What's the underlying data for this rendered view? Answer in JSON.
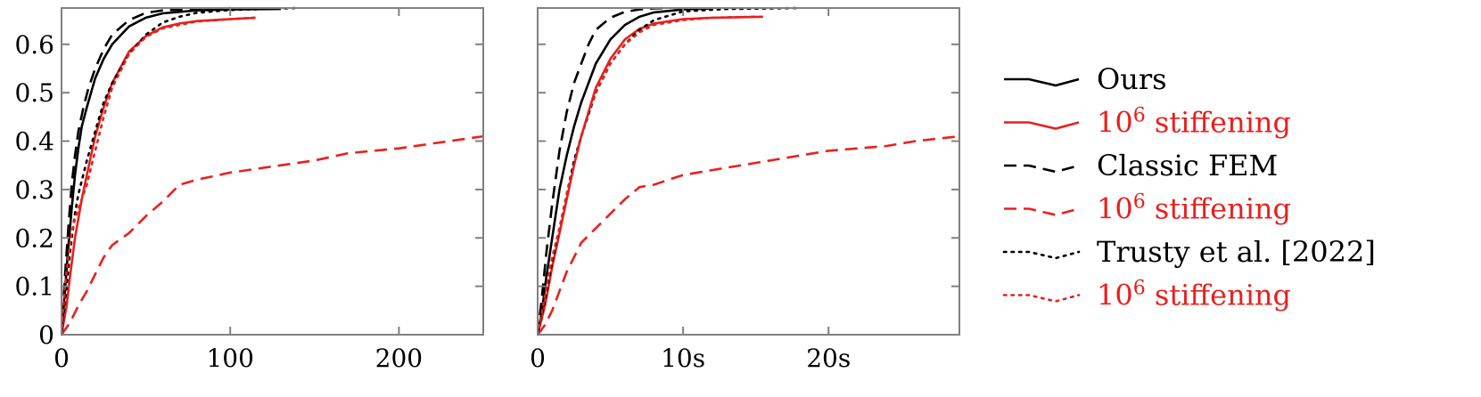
{
  "colors": {
    "black": "#000000",
    "red": "#e8201d",
    "axis": "#808080"
  },
  "legend": {
    "entries": [
      {
        "label": "Ours",
        "sup": "",
        "suffix": "",
        "color": "#000000",
        "style": "solid"
      },
      {
        "label": "10",
        "sup": "6",
        "suffix": " stiffening",
        "color": "#e8201d",
        "style": "solid"
      },
      {
        "label": "Classic FEM",
        "sup": "",
        "suffix": "",
        "color": "#000000",
        "style": "dashed"
      },
      {
        "label": "10",
        "sup": "6",
        "suffix": " stiffening",
        "color": "#e8201d",
        "style": "dashed"
      },
      {
        "label": "Trusty et al. [2022]",
        "sup": "",
        "suffix": "",
        "color": "#000000",
        "style": "dotted"
      },
      {
        "label": "10",
        "sup": "6",
        "suffix": " stiffening",
        "color": "#e8201d",
        "style": "dotted"
      }
    ]
  },
  "chart_data": [
    {
      "type": "line",
      "title": "",
      "xlabel": "",
      "ylabel": "",
      "xlim": [
        0,
        250
      ],
      "ylim": [
        0,
        0.675
      ],
      "x_ticks": [
        0,
        100,
        200
      ],
      "x_tick_labels": [
        "0",
        "100",
        "200"
      ],
      "y_ticks": [
        0,
        0.1,
        0.2,
        0.3,
        0.4,
        0.5,
        0.6
      ],
      "y_tick_labels": [
        "0",
        "0.1",
        "0.2",
        "0.3",
        "0.4",
        "0.5",
        "0.6"
      ],
      "grid": false,
      "series": [
        {
          "name": "Ours",
          "color": "#000000",
          "style": "solid",
          "points": [
            [
              0,
              0
            ],
            [
              2,
              0.09
            ],
            [
              4,
              0.18
            ],
            [
              6,
              0.26
            ],
            [
              8,
              0.33
            ],
            [
              10,
              0.385
            ],
            [
              12,
              0.43
            ],
            [
              15,
              0.47
            ],
            [
              20,
              0.53
            ],
            [
              25,
              0.57
            ],
            [
              30,
              0.6
            ],
            [
              40,
              0.637
            ],
            [
              50,
              0.655
            ],
            [
              60,
              0.664
            ],
            [
              80,
              0.67
            ],
            [
              100,
              0.672
            ],
            [
              130,
              0.673
            ]
          ]
        },
        {
          "name": "10^6 stiffening",
          "color": "#e8201d",
          "style": "solid",
          "points": [
            [
              0,
              0
            ],
            [
              3,
              0.06
            ],
            [
              5,
              0.12
            ],
            [
              8,
              0.2
            ],
            [
              12,
              0.28
            ],
            [
              15,
              0.33
            ],
            [
              20,
              0.41
            ],
            [
              25,
              0.47
            ],
            [
              30,
              0.52
            ],
            [
              40,
              0.585
            ],
            [
              50,
              0.617
            ],
            [
              60,
              0.635
            ],
            [
              70,
              0.643
            ],
            [
              80,
              0.648
            ],
            [
              100,
              0.652
            ],
            [
              115,
              0.655
            ]
          ]
        },
        {
          "name": "Classic FEM",
          "color": "#000000",
          "style": "dashed",
          "points": [
            [
              0,
              0
            ],
            [
              2,
              0.12
            ],
            [
              4,
              0.22
            ],
            [
              6,
              0.31
            ],
            [
              8,
              0.37
            ],
            [
              10,
              0.42
            ],
            [
              13,
              0.47
            ],
            [
              16,
              0.51
            ],
            [
              20,
              0.55
            ],
            [
              25,
              0.59
            ],
            [
              30,
              0.62
            ],
            [
              40,
              0.65
            ],
            [
              50,
              0.665
            ],
            [
              60,
              0.67
            ],
            [
              80,
              0.673
            ],
            [
              100,
              0.675
            ]
          ]
        },
        {
          "name": "10^6 stiffening",
          "color": "#e8201d",
          "style": "dashed",
          "points": [
            [
              0,
              0
            ],
            [
              5,
              0.025
            ],
            [
              10,
              0.06
            ],
            [
              15,
              0.09
            ],
            [
              20,
              0.125
            ],
            [
              25,
              0.16
            ],
            [
              30,
              0.185
            ],
            [
              40,
              0.21
            ],
            [
              50,
              0.245
            ],
            [
              60,
              0.275
            ],
            [
              70,
              0.31
            ],
            [
              80,
              0.32
            ],
            [
              100,
              0.335
            ],
            [
              130,
              0.35
            ],
            [
              150,
              0.36
            ],
            [
              170,
              0.375
            ],
            [
              200,
              0.385
            ],
            [
              220,
              0.395
            ],
            [
              250,
              0.41
            ]
          ]
        },
        {
          "name": "Trusty et al. [2022]",
          "color": "#000000",
          "style": "dotted",
          "points": [
            [
              0,
              0
            ],
            [
              3,
              0.1
            ],
            [
              5,
              0.17
            ],
            [
              8,
              0.25
            ],
            [
              10,
              0.29
            ],
            [
              15,
              0.36
            ],
            [
              20,
              0.42
            ],
            [
              25,
              0.48
            ],
            [
              30,
              0.52
            ],
            [
              40,
              0.58
            ],
            [
              50,
              0.62
            ],
            [
              60,
              0.645
            ],
            [
              70,
              0.657
            ],
            [
              80,
              0.665
            ],
            [
              100,
              0.671
            ],
            [
              140,
              0.675
            ]
          ]
        },
        {
          "name": "10^6 stiffening",
          "color": "#e8201d",
          "style": "dotted",
          "points": [
            [
              0,
              0
            ],
            [
              2,
              0.1
            ],
            [
              4,
              0.16
            ],
            [
              6,
              0.21
            ],
            [
              8,
              0.24
            ],
            [
              10,
              0.26
            ],
            [
              13,
              0.29
            ],
            [
              15,
              0.31
            ],
            [
              20,
              0.38
            ],
            [
              25,
              0.45
            ],
            [
              30,
              0.51
            ],
            [
              40,
              0.58
            ],
            [
              50,
              0.615
            ],
            [
              60,
              0.633
            ],
            [
              80,
              0.647
            ],
            [
              100,
              0.652
            ],
            [
              115,
              0.655
            ]
          ]
        }
      ]
    },
    {
      "type": "line",
      "title": "",
      "xlabel": "",
      "ylabel": "",
      "xlim": [
        0,
        29
      ],
      "ylim": [
        0,
        0.675
      ],
      "x_ticks": [
        0,
        10,
        20
      ],
      "x_tick_labels": [
        "0",
        "10s",
        "20s"
      ],
      "y_ticks": [
        0,
        0.1,
        0.2,
        0.3,
        0.4,
        0.5,
        0.6
      ],
      "y_tick_labels": [
        "",
        "",
        "",
        "",
        "",
        "",
        ""
      ],
      "grid": false,
      "series": [
        {
          "name": "Ours",
          "color": "#000000",
          "style": "solid",
          "points": [
            [
              0,
              0
            ],
            [
              0.3,
              0.05
            ],
            [
              0.6,
              0.12
            ],
            [
              1,
              0.2
            ],
            [
              1.5,
              0.3
            ],
            [
              2,
              0.37
            ],
            [
              2.5,
              0.43
            ],
            [
              3,
              0.48
            ],
            [
              4,
              0.56
            ],
            [
              5,
              0.61
            ],
            [
              6,
              0.64
            ],
            [
              7,
              0.657
            ],
            [
              8,
              0.666
            ],
            [
              10,
              0.672
            ],
            [
              12,
              0.674
            ]
          ]
        },
        {
          "name": "10^6 stiffening",
          "color": "#e8201d",
          "style": "solid",
          "points": [
            [
              0,
              0
            ],
            [
              0.5,
              0.06
            ],
            [
              1,
              0.14
            ],
            [
              1.5,
              0.21
            ],
            [
              2,
              0.28
            ],
            [
              2.5,
              0.35
            ],
            [
              3,
              0.41
            ],
            [
              3.5,
              0.46
            ],
            [
              4,
              0.51
            ],
            [
              5,
              0.57
            ],
            [
              6,
              0.61
            ],
            [
              7,
              0.632
            ],
            [
              8,
              0.643
            ],
            [
              10,
              0.652
            ],
            [
              12,
              0.655
            ],
            [
              15.5,
              0.657
            ]
          ]
        },
        {
          "name": "Classic FEM",
          "color": "#000000",
          "style": "dashed",
          "points": [
            [
              0,
              0
            ],
            [
              0.3,
              0.08
            ],
            [
              0.6,
              0.17
            ],
            [
              1,
              0.27
            ],
            [
              1.5,
              0.38
            ],
            [
              2,
              0.46
            ],
            [
              2.5,
              0.52
            ],
            [
              3,
              0.56
            ],
            [
              3.5,
              0.6
            ],
            [
              4,
              0.63
            ],
            [
              5,
              0.655
            ],
            [
              6,
              0.667
            ],
            [
              7,
              0.672
            ],
            [
              8,
              0.674
            ],
            [
              9,
              0.675
            ]
          ]
        },
        {
          "name": "10^6 stiffening",
          "color": "#e8201d",
          "style": "dashed",
          "points": [
            [
              0,
              0
            ],
            [
              0.5,
              0.02
            ],
            [
              1,
              0.05
            ],
            [
              1.5,
              0.09
            ],
            [
              2,
              0.13
            ],
            [
              2.5,
              0.16
            ],
            [
              3,
              0.19
            ],
            [
              4,
              0.22
            ],
            [
              5,
              0.25
            ],
            [
              6,
              0.28
            ],
            [
              7,
              0.305
            ],
            [
              8,
              0.31
            ],
            [
              9,
              0.32
            ],
            [
              10,
              0.33
            ],
            [
              12,
              0.34
            ],
            [
              15,
              0.355
            ],
            [
              18,
              0.37
            ],
            [
              20,
              0.38
            ],
            [
              24,
              0.39
            ],
            [
              26,
              0.4
            ],
            [
              29,
              0.41
            ]
          ]
        },
        {
          "name": "Trusty et al. [2022]",
          "color": "#000000",
          "style": "dotted",
          "points": [
            [
              0,
              0
            ],
            [
              0.5,
              0.07
            ],
            [
              1,
              0.15
            ],
            [
              1.5,
              0.22
            ],
            [
              2,
              0.29
            ],
            [
              2.5,
              0.36
            ],
            [
              3,
              0.41
            ],
            [
              4,
              0.5
            ],
            [
              5,
              0.56
            ],
            [
              6,
              0.6
            ],
            [
              7,
              0.63
            ],
            [
              8,
              0.65
            ],
            [
              10,
              0.668
            ],
            [
              13,
              0.673
            ],
            [
              18,
              0.675
            ]
          ]
        },
        {
          "name": "10^6 stiffening",
          "color": "#e8201d",
          "style": "dotted",
          "points": [
            [
              0,
              0
            ],
            [
              0.5,
              0.08
            ],
            [
              1,
              0.16
            ],
            [
              1.5,
              0.22
            ],
            [
              2,
              0.29
            ],
            [
              2.5,
              0.35
            ],
            [
              3,
              0.41
            ],
            [
              3.5,
              0.46
            ],
            [
              4,
              0.5
            ],
            [
              5,
              0.56
            ],
            [
              6,
              0.6
            ],
            [
              7,
              0.625
            ],
            [
              8,
              0.64
            ],
            [
              10,
              0.65
            ],
            [
              12,
              0.655
            ],
            [
              15,
              0.657
            ]
          ]
        }
      ]
    }
  ]
}
